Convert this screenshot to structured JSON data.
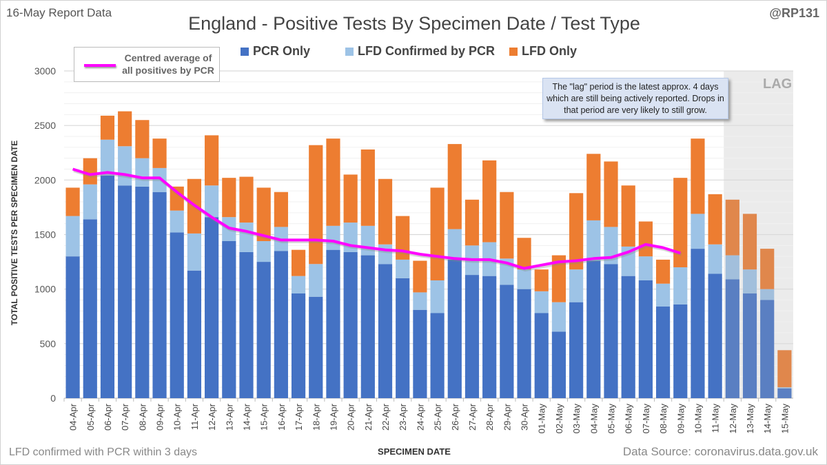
{
  "header": {
    "report": "16-May Report Data",
    "handle": "@RP131"
  },
  "footer": {
    "note": "LFD confirmed with PCR within 3 days",
    "source": "Data Source: coronavirus.data.gov.uk"
  },
  "annotation": "The \"lag\" period is the latest approx. 4 days which are still being actively reported.  Drops in that period are very likely to still grow.",
  "lag_label": "LAG",
  "colors": {
    "pcr": "#4472c4",
    "conf": "#9dc3e6",
    "lfd": "#ed7d31",
    "avg": "#ff00ff",
    "lag_bg": "#ebebeb",
    "pcr_lag": "#5a7fc2",
    "conf_lag": "#a2bfdc",
    "lfd_lag": "#e0874c"
  },
  "chart_data": {
    "type": "bar",
    "stacked": true,
    "title": "England - Positive Tests By Specimen Date / Test Type",
    "xlabel": "SPECIMEN DATE",
    "ylabel": "TOTAL POSITIVE TESTS PER SPECIMEN DATE",
    "ylim": [
      0,
      3000
    ],
    "yticks": [
      0,
      500,
      1000,
      1500,
      2000,
      2500,
      3000
    ],
    "legend": [
      "PCR Only",
      "LFD Confirmed by PCR",
      "LFD Only"
    ],
    "line_legend": "Centred average of all positives by PCR",
    "lag_from": "12-May",
    "categories": [
      "04-Apr",
      "05-Apr",
      "06-Apr",
      "07-Apr",
      "08-Apr",
      "09-Apr",
      "10-Apr",
      "11-Apr",
      "12-Apr",
      "13-Apr",
      "14-Apr",
      "15-Apr",
      "16-Apr",
      "17-Apr",
      "18-Apr",
      "19-Apr",
      "20-Apr",
      "21-Apr",
      "22-Apr",
      "23-Apr",
      "24-Apr",
      "25-Apr",
      "26-Apr",
      "27-Apr",
      "28-Apr",
      "29-Apr",
      "30-Apr",
      "01-May",
      "02-May",
      "03-May",
      "04-May",
      "05-May",
      "06-May",
      "07-May",
      "08-May",
      "09-May",
      "10-May",
      "11-May",
      "12-May",
      "13-May",
      "14-May",
      "15-May"
    ],
    "series": [
      {
        "name": "PCR Only",
        "values": [
          1300,
          1640,
          2040,
          1950,
          1940,
          1890,
          1520,
          1170,
          1660,
          1440,
          1340,
          1250,
          1350,
          960,
          930,
          1360,
          1340,
          1310,
          1230,
          1100,
          810,
          780,
          1270,
          1130,
          1120,
          1040,
          1000,
          780,
          610,
          880,
          1260,
          1230,
          1120,
          1080,
          840,
          860,
          1370,
          1140,
          1090,
          960,
          900,
          90
        ]
      },
      {
        "name": "LFD Confirmed by PCR",
        "values": [
          370,
          320,
          330,
          360,
          260,
          220,
          200,
          340,
          290,
          220,
          270,
          190,
          220,
          160,
          300,
          220,
          270,
          270,
          180,
          170,
          160,
          300,
          280,
          270,
          310,
          240,
          180,
          200,
          270,
          300,
          370,
          340,
          270,
          220,
          210,
          340,
          320,
          270,
          220,
          220,
          100,
          10
        ]
      },
      {
        "name": "LFD Only",
        "values": [
          260,
          240,
          220,
          320,
          350,
          270,
          220,
          500,
          460,
          360,
          420,
          490,
          320,
          240,
          1090,
          800,
          440,
          700,
          600,
          400,
          290,
          850,
          780,
          420,
          750,
          610,
          290,
          200,
          430,
          700,
          610,
          600,
          560,
          320,
          220,
          820,
          690,
          460,
          510,
          510,
          370,
          340
        ]
      },
      {
        "name": "Centred average of all positives by PCR",
        "type": "line",
        "values": [
          2100,
          2050,
          2070,
          2050,
          2020,
          2020,
          1890,
          1770,
          1660,
          1560,
          1530,
          1490,
          1450,
          1450,
          1450,
          1440,
          1400,
          1380,
          1360,
          1350,
          1320,
          1300,
          1280,
          1270,
          1270,
          1240,
          1190,
          1220,
          1250,
          1260,
          1280,
          1290,
          1340,
          1410,
          1380,
          1330,
          null,
          null,
          null,
          null,
          null,
          null
        ]
      }
    ]
  }
}
